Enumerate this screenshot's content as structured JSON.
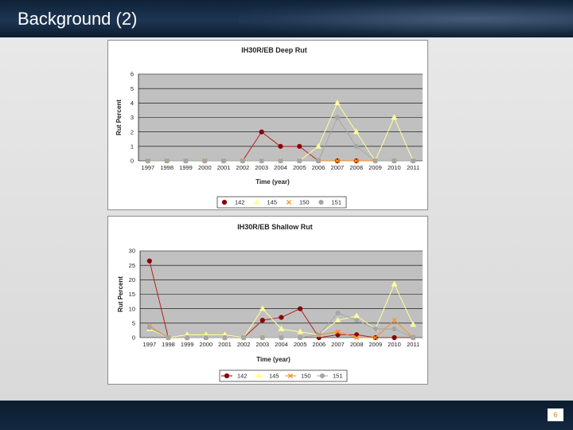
{
  "slide": {
    "title": "Background (2)",
    "page_number": "6"
  },
  "colors": {
    "header_bg": "#1d3552",
    "plot_bg": "#c0c0c0",
    "series_142": "#8b0000",
    "series_145": "#ffff99",
    "series_150": "#ff8c1a",
    "series_151": "#a6a6a6"
  },
  "chart_data": [
    {
      "type": "line",
      "title": "IH30R/EB Deep Rut",
      "xlabel": "Time (year)",
      "ylabel": "Rut Percent",
      "ylim": [
        0,
        6
      ],
      "yticks": [
        0,
        1,
        2,
        3,
        4,
        5,
        6
      ],
      "grid": true,
      "legend": "bottom",
      "categories": [
        "1997",
        "1998",
        "1999",
        "2000",
        "2001",
        "2002",
        "2003",
        "2004",
        "2005",
        "2006",
        "2007",
        "2008",
        "2009",
        "2010",
        "2011"
      ],
      "series": [
        {
          "name": "142",
          "marker": "circle",
          "color": "#8b0000",
          "values": [
            0,
            0,
            0,
            0,
            0,
            0,
            2,
            1,
            1,
            0,
            0,
            0,
            0,
            0,
            0
          ]
        },
        {
          "name": "145",
          "marker": "triangle",
          "color": "#ffff99",
          "values": [
            0,
            0,
            0,
            0,
            0,
            0,
            0,
            0,
            0,
            1,
            4,
            2,
            0,
            3,
            0
          ]
        },
        {
          "name": "150",
          "marker": "x",
          "color": "#ff8c1a",
          "values": [
            0,
            0,
            0,
            0,
            0,
            0,
            0,
            0,
            0,
            0,
            0,
            0,
            0,
            0,
            0
          ]
        },
        {
          "name": "151",
          "marker": "circle",
          "color": "#a6a6a6",
          "values": [
            0,
            0,
            0,
            0,
            0,
            0,
            0,
            0,
            0,
            0,
            3,
            1,
            0,
            0,
            0
          ]
        }
      ]
    },
    {
      "type": "line",
      "title": "IH30R/EB Shallow Rut",
      "xlabel": "Time (year)",
      "ylabel": "Rut Percent",
      "ylim": [
        0,
        30
      ],
      "yticks": [
        0,
        5,
        10,
        15,
        20,
        25,
        30
      ],
      "grid": true,
      "legend": "bottom",
      "categories": [
        "1997",
        "1998",
        "1999",
        "2000",
        "2001",
        "2002",
        "2003",
        "2004",
        "2005",
        "2006",
        "2007",
        "2008",
        "2009",
        "2010",
        "2011"
      ],
      "series": [
        {
          "name": "142",
          "marker": "circle",
          "color": "#8b0000",
          "values": [
            26.5,
            0,
            0,
            0,
            0,
            0,
            6,
            7,
            10,
            0,
            1,
            1,
            0,
            0,
            0
          ]
        },
        {
          "name": "145",
          "marker": "triangle",
          "color": "#ffff99",
          "values": [
            3,
            0,
            1,
            1,
            1,
            0,
            10,
            3,
            2,
            1,
            6,
            7.5,
            3,
            18.5,
            4.5
          ]
        },
        {
          "name": "150",
          "marker": "x",
          "color": "#ff8c1a",
          "values": [
            4,
            0,
            0,
            0,
            0,
            0,
            0,
            0,
            0,
            1,
            2,
            0,
            0,
            6,
            0
          ]
        },
        {
          "name": "151",
          "marker": "circle",
          "color": "#a6a6a6",
          "values": [
            3.5,
            0,
            0,
            0,
            0,
            0,
            0,
            0,
            0,
            1,
            8.5,
            6,
            3,
            3,
            0
          ]
        }
      ]
    }
  ]
}
